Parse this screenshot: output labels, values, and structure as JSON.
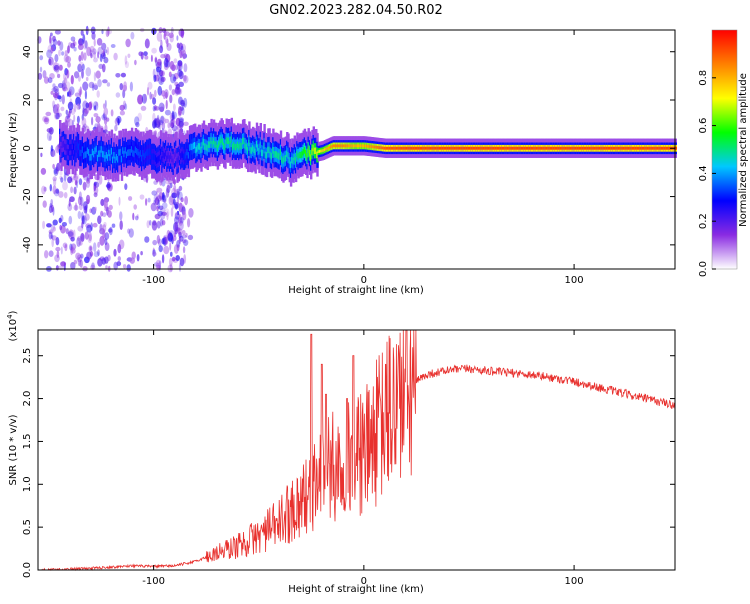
{
  "title": "GN02.2023.282.04.50.R02",
  "chart_data": [
    {
      "type": "heatmap",
      "panel": "spectrogram",
      "xlabel": "Height of straight line (km)",
      "ylabel": "Frequency (Hz)",
      "xlim": [
        -155,
        148
      ],
      "ylim": [
        -50,
        49
      ],
      "x_ticks": [
        -100,
        0,
        100
      ],
      "y_ticks": [
        -40,
        -20,
        0,
        20,
        40
      ],
      "colorbar": {
        "label": "Normalized spectral amplitude",
        "range": [
          0.0,
          1.0
        ],
        "ticks": [
          0.0,
          0.2,
          0.4,
          0.6,
          0.8
        ],
        "colormap": [
          "#ffffff",
          "#8a2be2",
          "#0000ff",
          "#00c8ff",
          "#00ff00",
          "#ffff00",
          "#ff8000",
          "#ff0000"
        ]
      },
      "ridge": {
        "x": [
          -145,
          -130,
          -120,
          -110,
          -100,
          -90,
          -80,
          -70,
          -60,
          -50,
          -40,
          -35,
          -30,
          -25,
          -20,
          -15,
          -10,
          -5,
          0,
          10,
          20,
          40,
          60,
          80,
          100,
          120,
          148
        ],
        "frequency": [
          1,
          -2,
          -3,
          -2,
          -3,
          -4,
          0,
          2,
          2,
          0,
          -3,
          -5,
          -3,
          -2,
          -1,
          1,
          1,
          1,
          1,
          0,
          0,
          0,
          0,
          0,
          0,
          0,
          0
        ],
        "amplitude": [
          0.2,
          0.4,
          0.4,
          0.35,
          0.3,
          0.2,
          0.45,
          0.5,
          0.5,
          0.45,
          0.5,
          0.45,
          0.55,
          0.65,
          0.75,
          0.85,
          0.85,
          0.8,
          0.8,
          0.9,
          0.92,
          0.92,
          0.92,
          0.92,
          0.92,
          0.92,
          0.92
        ]
      },
      "scatter_region_x": [
        -155,
        -82
      ]
    },
    {
      "type": "line",
      "panel": "snr",
      "xlabel": "Height of straight line (km)",
      "ylabel": "SNR (10 * v/v)",
      "y_multiplier": "(x10",
      "y_multiplier_exp": "4",
      "y_multiplier_close": ")",
      "xlim": [
        -155,
        148
      ],
      "ylim": [
        0,
        2.8
      ],
      "x_ticks": [
        -100,
        0,
        100
      ],
      "y_ticks": [
        0.0,
        0.5,
        1.0,
        1.5,
        2.0,
        2.5
      ],
      "y_tick_labels": [
        "0.0",
        "0.5",
        "1.0",
        "1.5",
        "2.0",
        "2.5"
      ],
      "color": "#e8312e",
      "x": [
        -155,
        -130,
        -110,
        -100,
        -90,
        -80,
        -70,
        -60,
        -50,
        -40,
        -35,
        -30,
        -25,
        -20,
        -15,
        -10,
        -5,
        0,
        5,
        10,
        15,
        20,
        25,
        30,
        40,
        50,
        60,
        80,
        100,
        120,
        148
      ],
      "y": [
        0.0,
        0.02,
        0.05,
        0.04,
        0.05,
        0.1,
        0.2,
        0.28,
        0.4,
        0.55,
        0.7,
        0.8,
        0.95,
        1.1,
        1.2,
        1.25,
        1.3,
        1.35,
        1.55,
        1.75,
        1.95,
        2.1,
        2.2,
        2.28,
        2.33,
        2.35,
        2.32,
        2.28,
        2.2,
        2.08,
        1.92
      ],
      "spikes": [
        {
          "x": -25,
          "y": 2.75
        },
        {
          "x": -20,
          "y": 2.4
        },
        {
          "x": -5,
          "y": 2.5
        },
        {
          "x": -18,
          "y": 2.05
        },
        {
          "x": -8,
          "y": 2.0
        }
      ]
    }
  ]
}
